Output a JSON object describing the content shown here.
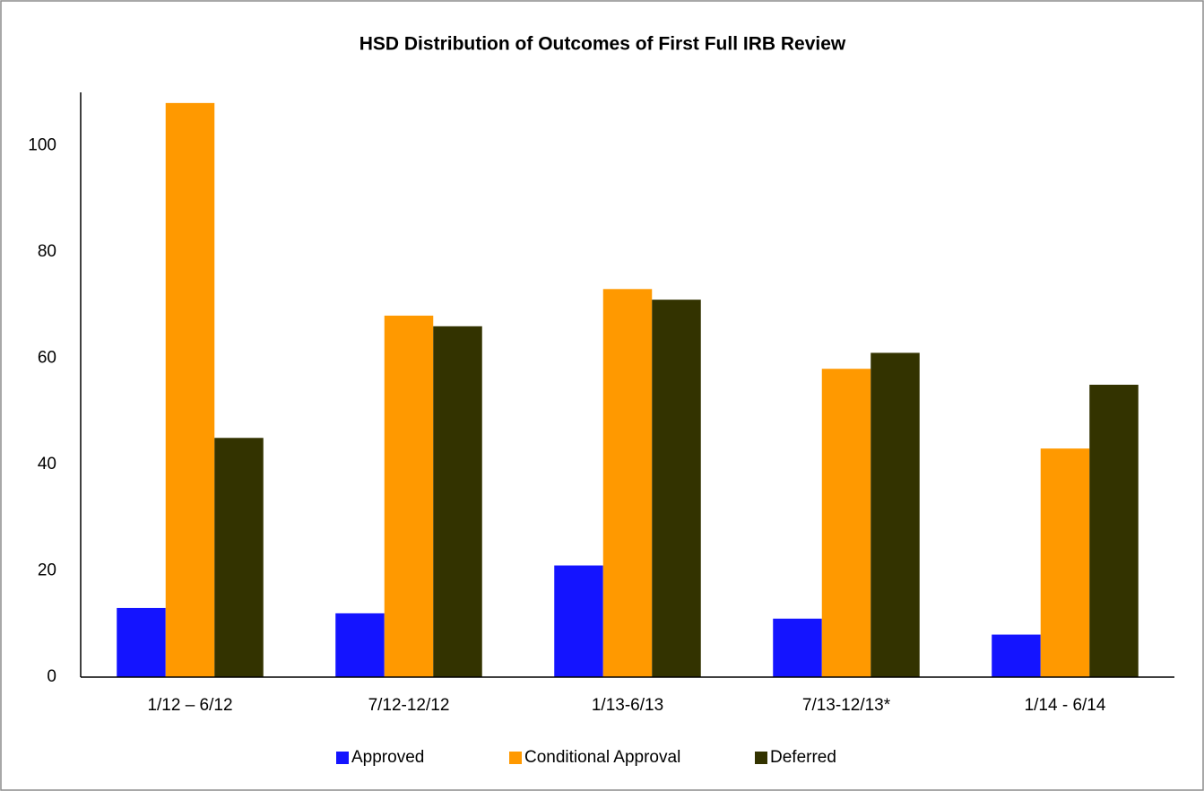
{
  "chart_data": {
    "type": "bar",
    "title": "HSD Distribution of Outcomes of First Full IRB Review",
    "categories": [
      "1/12 – 6/12",
      "7/12-12/12",
      "1/13-6/13",
      "7/13-12/13*",
      "1/14 - 6/14"
    ],
    "series": [
      {
        "name": "Approved",
        "color": "#1414ff",
        "values": [
          13,
          12,
          21,
          11,
          8
        ]
      },
      {
        "name": "Conditional Approval",
        "color": "#ff9900",
        "values": [
          108,
          68,
          73,
          58,
          43
        ]
      },
      {
        "name": "Deferred",
        "color": "#333300",
        "values": [
          45,
          66,
          71,
          61,
          55
        ]
      }
    ],
    "ylim": [
      0,
      110
    ],
    "yticks": [
      0,
      20,
      40,
      60,
      80,
      100
    ],
    "grid": false,
    "legend": "bottom"
  }
}
